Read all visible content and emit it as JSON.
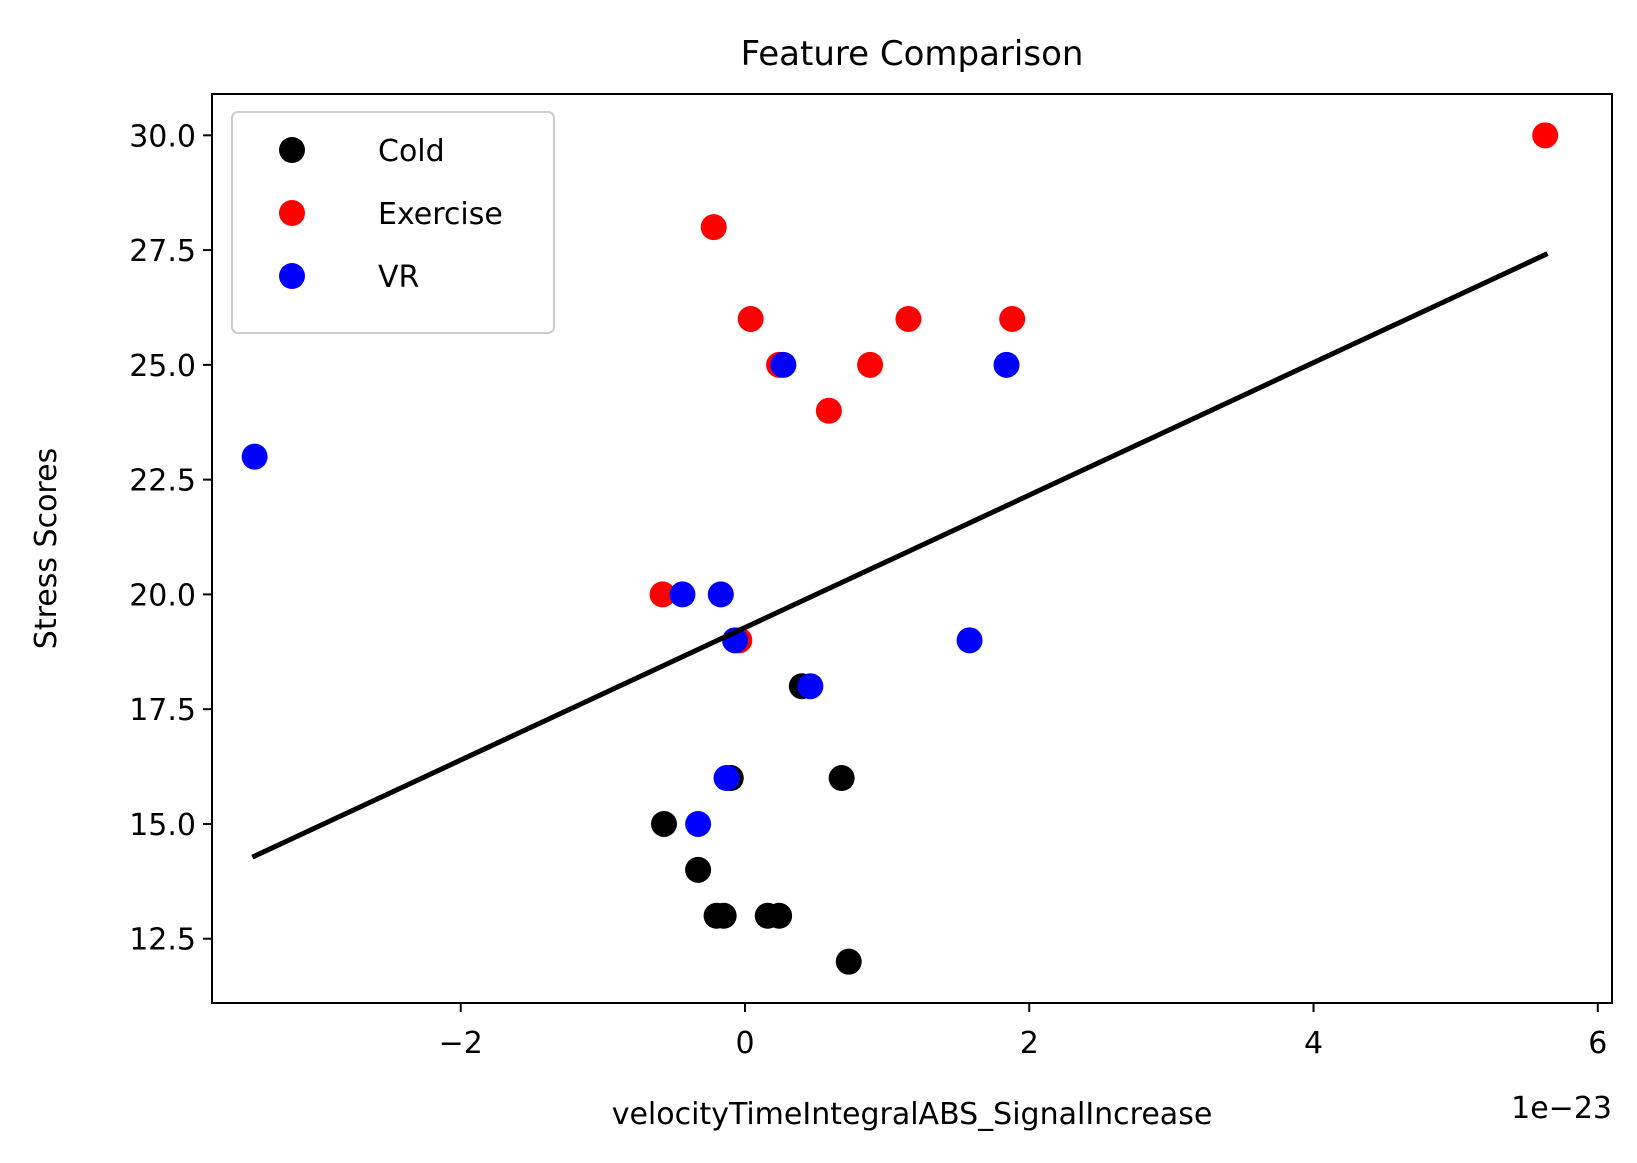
{
  "chart_data": {
    "type": "scatter",
    "title": "Feature Comparison",
    "xlabel": "velocityTimeIntegralABS_SignalIncrease",
    "ylabel": "Stress Scores",
    "x_offset_label": "1e−23",
    "xlim": [
      -3.75,
      6.1
    ],
    "ylim": [
      11.1,
      30.9
    ],
    "x_ticks": [
      -2,
      0,
      2,
      4,
      6
    ],
    "x_tick_labels": [
      "−2",
      "0",
      "2",
      "4",
      "6"
    ],
    "y_ticks": [
      12.5,
      15.0,
      17.5,
      20.0,
      22.5,
      25.0,
      27.5,
      30.0
    ],
    "y_tick_labels": [
      "12.5",
      "15.0",
      "17.5",
      "20.0",
      "22.5",
      "25.0",
      "27.5",
      "30.0"
    ],
    "grid": false,
    "legend_position": "top-left",
    "series": [
      {
        "name": "Cold",
        "color": "#000000",
        "points": [
          {
            "x": -0.57,
            "y": 15
          },
          {
            "x": -0.33,
            "y": 14
          },
          {
            "x": -0.2,
            "y": 13
          },
          {
            "x": -0.15,
            "y": 13
          },
          {
            "x": 0.16,
            "y": 13
          },
          {
            "x": 0.24,
            "y": 13
          },
          {
            "x": 0.73,
            "y": 12
          },
          {
            "x": 0.68,
            "y": 16
          },
          {
            "x": -0.1,
            "y": 16
          },
          {
            "x": 0.4,
            "y": 18
          }
        ]
      },
      {
        "name": "Exercise",
        "color": "#ff0000",
        "points": [
          {
            "x": -0.22,
            "y": 28
          },
          {
            "x": 0.04,
            "y": 26
          },
          {
            "x": 1.15,
            "y": 26
          },
          {
            "x": 1.88,
            "y": 26
          },
          {
            "x": 0.24,
            "y": 25
          },
          {
            "x": 0.88,
            "y": 25
          },
          {
            "x": 0.59,
            "y": 24
          },
          {
            "x": -0.58,
            "y": 20
          },
          {
            "x": -0.04,
            "y": 19
          },
          {
            "x": 5.63,
            "y": 30
          }
        ]
      },
      {
        "name": "VR",
        "color": "#0000ff",
        "points": [
          {
            "x": -3.45,
            "y": 23
          },
          {
            "x": 0.27,
            "y": 25
          },
          {
            "x": 1.84,
            "y": 25
          },
          {
            "x": -0.44,
            "y": 20
          },
          {
            "x": -0.17,
            "y": 20
          },
          {
            "x": -0.07,
            "y": 19
          },
          {
            "x": 1.58,
            "y": 19
          },
          {
            "x": 0.46,
            "y": 18
          },
          {
            "x": -0.13,
            "y": 16
          },
          {
            "x": -0.33,
            "y": 15
          }
        ]
      }
    ],
    "fit_line": {
      "color": "#000000",
      "points": [
        {
          "x": -3.45,
          "y": 14.3
        },
        {
          "x": 5.63,
          "y": 27.4
        }
      ]
    }
  }
}
